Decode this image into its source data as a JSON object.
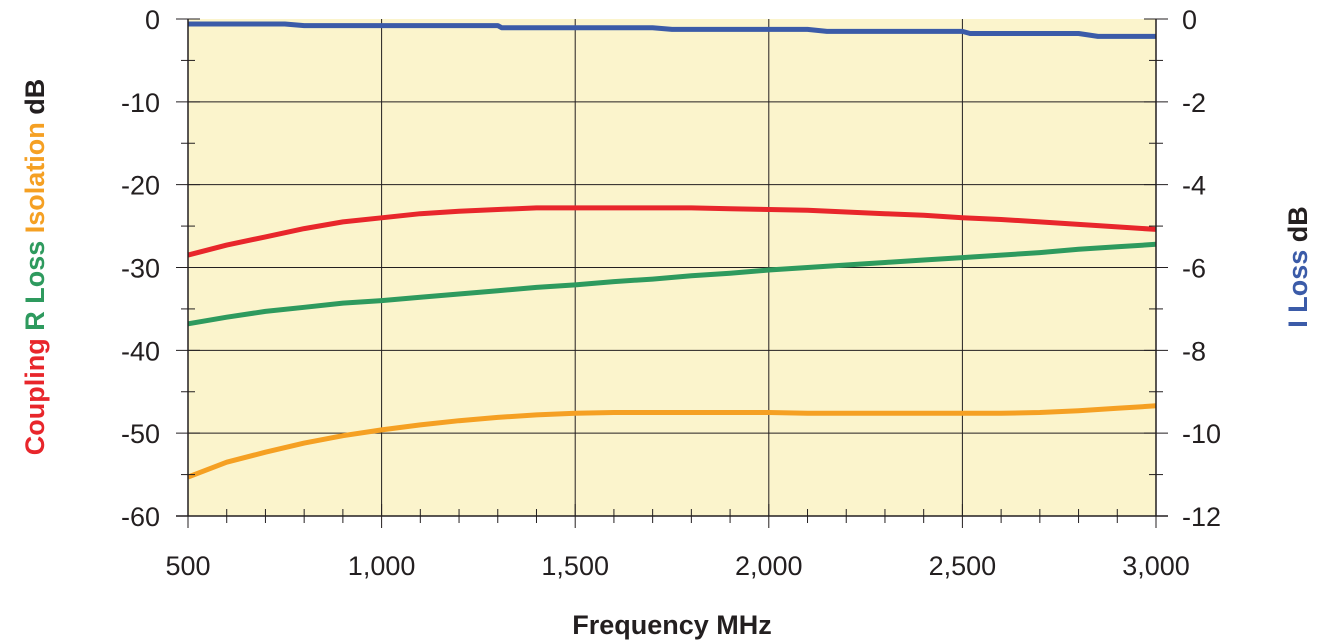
{
  "chart_data": {
    "type": "line",
    "x_axis": {
      "label": "Frequency MHz",
      "range": [
        500,
        3000
      ],
      "ticks": [
        500,
        1000,
        1500,
        2000,
        2500,
        3000
      ],
      "tick_labels": [
        "500",
        "1,000",
        "1,500",
        "2,000",
        "2,500",
        "3,000"
      ],
      "minor_step": 100
    },
    "y_left": {
      "title_parts": [
        {
          "text": "Coupling",
          "color": "#e8262b"
        },
        {
          "text": "R Loss",
          "color": "#2e9a5e"
        },
        {
          "text": "Isolation",
          "color": "#f5a023"
        },
        {
          "text": "dB",
          "color": "#231f20"
        }
      ],
      "range": [
        -60,
        0
      ],
      "ticks": [
        0,
        -10,
        -20,
        -30,
        -40,
        -50,
        -60
      ],
      "tick_labels": [
        "0",
        "-10",
        "-20",
        "-30",
        "-40",
        "-50",
        "-60"
      ]
    },
    "y_right": {
      "title_parts": [
        {
          "text": "I Loss",
          "color": "#3b5ba8"
        },
        {
          "text": "dB",
          "color": "#231f20"
        }
      ],
      "range": [
        -12,
        0
      ],
      "ticks": [
        0,
        -2,
        -4,
        -6,
        -8,
        -10,
        -12
      ],
      "tick_labels": [
        "0",
        "-2",
        "-4",
        "-6",
        "-8",
        "-10",
        "-12"
      ]
    },
    "grid": true,
    "plot_background": "#fbf4cc",
    "series": [
      {
        "name": "Coupling",
        "color": "#e8262b",
        "axis": "left",
        "x": [
          500,
          600,
          700,
          800,
          900,
          1000,
          1100,
          1200,
          1300,
          1400,
          1500,
          1600,
          1700,
          1800,
          1900,
          2000,
          2100,
          2200,
          2300,
          2400,
          2500,
          2600,
          2700,
          2800,
          2900,
          3000
        ],
        "y": [
          -28.5,
          -27.3,
          -26.3,
          -25.3,
          -24.5,
          -24,
          -23.5,
          -23.2,
          -23,
          -22.8,
          -22.8,
          -22.8,
          -22.8,
          -22.8,
          -22.9,
          -23,
          -23.1,
          -23.3,
          -23.5,
          -23.7,
          -24,
          -24.2,
          -24.5,
          -24.8,
          -25.1,
          -25.4
        ]
      },
      {
        "name": "R Loss",
        "color": "#2e9a5e",
        "axis": "left",
        "x": [
          500,
          600,
          700,
          800,
          900,
          1000,
          1100,
          1200,
          1300,
          1400,
          1500,
          1600,
          1700,
          1800,
          1900,
          2000,
          2100,
          2200,
          2300,
          2400,
          2500,
          2600,
          2700,
          2800,
          2900,
          3000
        ],
        "y": [
          -36.8,
          -36,
          -35.3,
          -34.8,
          -34.3,
          -34,
          -33.6,
          -33.2,
          -32.8,
          -32.4,
          -32.1,
          -31.7,
          -31.4,
          -31,
          -30.7,
          -30.3,
          -30,
          -29.7,
          -29.4,
          -29.1,
          -28.8,
          -28.5,
          -28.2,
          -27.8,
          -27.5,
          -27.2
        ]
      },
      {
        "name": "Isolation",
        "color": "#f5a023",
        "axis": "left",
        "x": [
          500,
          600,
          700,
          800,
          900,
          1000,
          1100,
          1200,
          1300,
          1400,
          1500,
          1600,
          1700,
          1800,
          1900,
          2000,
          2100,
          2200,
          2300,
          2400,
          2500,
          2600,
          2700,
          2800,
          2900,
          3000
        ],
        "y": [
          -55.3,
          -53.5,
          -52.3,
          -51.2,
          -50.3,
          -49.6,
          -49,
          -48.5,
          -48.1,
          -47.8,
          -47.6,
          -47.5,
          -47.5,
          -47.5,
          -47.5,
          -47.5,
          -47.6,
          -47.6,
          -47.6,
          -47.6,
          -47.6,
          -47.6,
          -47.5,
          -47.3,
          -47,
          -46.7
        ]
      },
      {
        "name": "I Loss",
        "color": "#3b5ba8",
        "axis": "right",
        "x": [
          500,
          750,
          800,
          1300,
          1310,
          1700,
          1750,
          2100,
          2150,
          2500,
          2520,
          2800,
          2850,
          3000
        ],
        "y": [
          -0.12,
          -0.12,
          -0.16,
          -0.16,
          -0.21,
          -0.21,
          -0.25,
          -0.25,
          -0.3,
          -0.3,
          -0.35,
          -0.35,
          -0.42,
          -0.42
        ]
      }
    ]
  }
}
